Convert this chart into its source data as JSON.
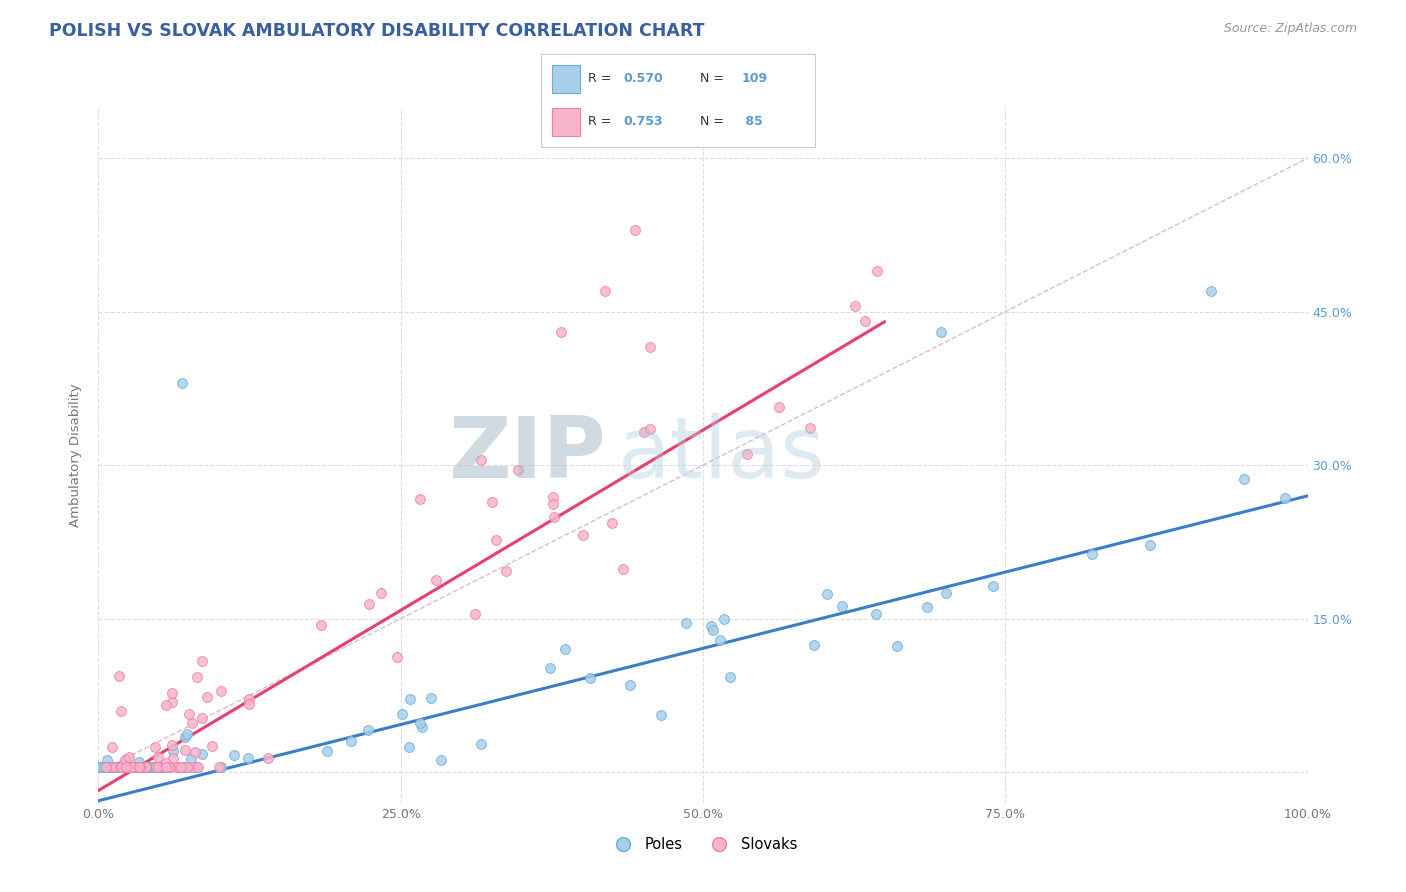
{
  "title": "POLISH VS SLOVAK AMBULATORY DISABILITY CORRELATION CHART",
  "source": "Source: ZipAtlas.com",
  "ylabel": "Ambulatory Disability",
  "xlim": [
    0.0,
    1.0
  ],
  "ylim": [
    -0.03,
    0.65
  ],
  "xticks": [
    0.0,
    0.25,
    0.5,
    0.75,
    1.0
  ],
  "xtick_labels": [
    "0.0%",
    "25.0%",
    "50.0%",
    "75.0%",
    "100.0%"
  ],
  "yticks": [
    0.0,
    0.15,
    0.3,
    0.45,
    0.6
  ],
  "ytick_labels": [
    "",
    "15.0%",
    "30.0%",
    "45.0%",
    "60.0%"
  ],
  "poles_color": "#A8CFEA",
  "slovaks_color": "#F8B4CB",
  "poles_edge_color": "#6AADD5",
  "slovaks_edge_color": "#EF7FA4",
  "trendline_poles_color": "#3A7EC8",
  "trendline_slovaks_color": "#E8406A",
  "diagonal_color": "#CCCCCC",
  "R_poles": 0.57,
  "N_poles": 109,
  "R_slovaks": 0.753,
  "N_slovaks": 85,
  "legend_poles": "Poles",
  "legend_slovaks": "Slovaks",
  "watermark_zip": "ZIP",
  "watermark_atlas": "atlas",
  "background_color": "#FFFFFF",
  "grid_color": "#DDDDDD",
  "title_color": "#3A5FA0",
  "axis_label_color": "#777777",
  "tick_color_x": "#777777",
  "tick_color_y": "#5B9BD5",
  "poles_trendline_x0": 0.0,
  "poles_trendline_y0": -0.028,
  "poles_trendline_x1": 1.0,
  "poles_trendline_y1": 0.27,
  "slovaks_trendline_x0": 0.0,
  "slovaks_trendline_y0": -0.018,
  "slovaks_trendline_x1": 0.65,
  "slovaks_trendline_y1": 0.44
}
